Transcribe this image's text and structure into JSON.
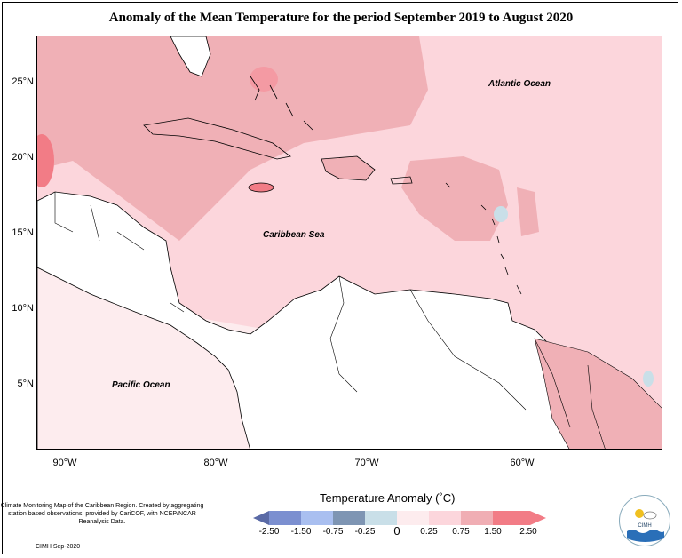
{
  "title": "Anomaly of the Mean Temperature for the period September 2019 to August 2020",
  "lat_labels": [
    "25°N",
    "20°N",
    "15°N",
    "10°N",
    "5°N"
  ],
  "lon_labels": [
    "90°W",
    "80°W",
    "70°W",
    "60°W"
  ],
  "regions": {
    "atlantic": "Atlantic Ocean",
    "caribbean": "Caribbean Sea",
    "pacific": "Pacific Ocean"
  },
  "legend": {
    "title": "Temperature Anomaly (˚C)",
    "ticks": [
      "-2.50",
      "-1.50",
      "-0.75",
      "-0.25",
      "0",
      "0.25",
      "0.75",
      "1.50",
      "2.50"
    ],
    "colors": [
      "#5a6aa6",
      "#7b8fd0",
      "#a9bff0",
      "#7e95b3",
      "#c9dfe8",
      "#fdecee",
      "#fcd6dc",
      "#f0aeb4",
      "#f27c86"
    ]
  },
  "credits": {
    "text": "Climate Monitoring Map of the Caribbean Region. Created by aggregating station based observations, provided by CariCOF, with NCEP/NCAR Reanalysis Data.",
    "date": "CIMH Sep-2020"
  },
  "logo": {
    "label": "CIMH"
  }
}
